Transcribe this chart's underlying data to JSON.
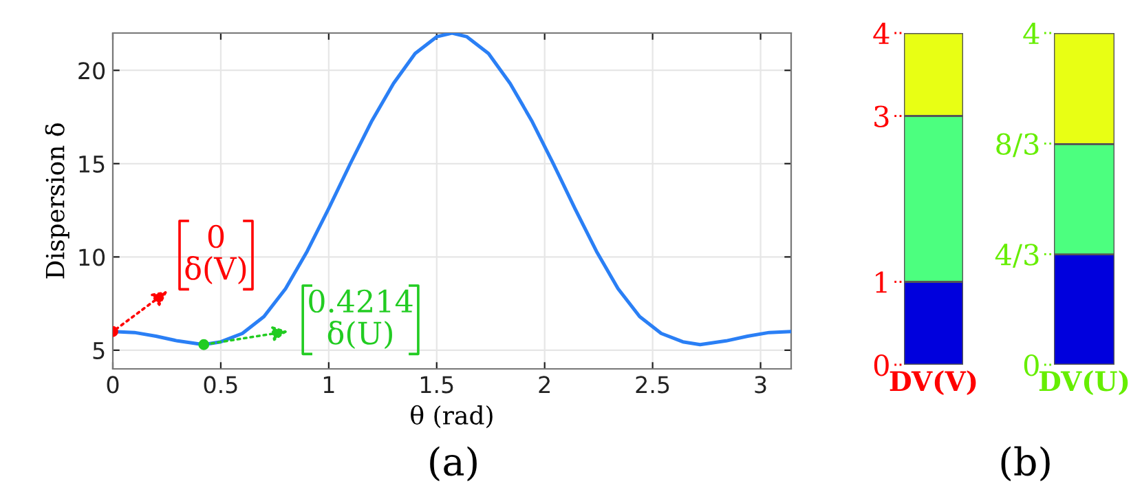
{
  "chart_data": [
    {
      "type": "line",
      "xlabel": "θ (rad)",
      "ylabel": "Dispersion δ",
      "xlim": [
        0,
        3.1416
      ],
      "ylim": [
        4,
        22
      ],
      "xticks": [
        0,
        0.5,
        1,
        1.5,
        2,
        2.5,
        3
      ],
      "yticks": [
        5,
        10,
        15,
        20
      ],
      "grid": true,
      "series": [
        {
          "type": "line",
          "color": "#2a7ff5",
          "x": [
            0,
            0.1,
            0.2,
            0.3,
            0.42,
            0.5,
            0.6,
            0.7,
            0.8,
            0.9,
            1.0,
            1.1,
            1.2,
            1.3,
            1.4,
            1.5,
            1.571,
            1.64,
            1.74,
            1.84,
            1.94,
            2.04,
            2.14,
            2.24,
            2.34,
            2.44,
            2.54,
            2.64,
            2.72,
            2.84,
            2.94,
            3.04,
            3.1416
          ],
          "values": [
            6.0,
            5.95,
            5.75,
            5.5,
            5.3,
            5.45,
            5.9,
            6.8,
            8.3,
            10.3,
            12.6,
            15.0,
            17.3,
            19.3,
            20.9,
            21.8,
            22.0,
            21.8,
            20.9,
            19.3,
            17.3,
            15.0,
            12.6,
            10.3,
            8.3,
            6.8,
            5.9,
            5.45,
            5.3,
            5.5,
            5.75,
            5.95,
            6.0
          ]
        },
        {
          "type": "scatter",
          "color": "#ff0000",
          "x": [
            0
          ],
          "values": [
            6.0
          ]
        },
        {
          "type": "scatter",
          "color": "#22cc22",
          "x": [
            0.4214
          ],
          "values": [
            5.3
          ]
        }
      ],
      "annotations": [
        {
          "text": "0\nδ(V)",
          "x": 0,
          "y": 6.0
        },
        {
          "text": "0.4214\nδ(U)",
          "x": 0.4214,
          "y": 5.3
        },
        "(a)"
      ]
    },
    {
      "type": "bar",
      "stacked": true,
      "categories": [
        "DV(V)"
      ],
      "ylim": [
        0,
        4
      ],
      "yticks": [
        0,
        1,
        3,
        4
      ],
      "series": [
        {
          "color": "#0000dd",
          "values": [
            1
          ]
        },
        {
          "color": "#4cff7f",
          "values": [
            2
          ]
        },
        {
          "color": "#e8ff14",
          "values": [
            1
          ]
        }
      ]
    },
    {
      "type": "bar",
      "stacked": true,
      "categories": [
        "DV(U)"
      ],
      "ylim": [
        0,
        4
      ],
      "yticks": [
        0,
        {
          "value": 1.3333,
          "label": "4/3"
        },
        {
          "value": 2.6667,
          "label": "8/3"
        },
        4
      ],
      "series": [
        {
          "color": "#0000dd",
          "values": [
            1.33
          ]
        },
        {
          "color": "#4cff7f",
          "values": [
            1.33
          ]
        },
        {
          "color": "#e8ff14",
          "values": [
            1.34
          ]
        }
      ],
      "annotations": [
        "(b)"
      ]
    }
  ]
}
